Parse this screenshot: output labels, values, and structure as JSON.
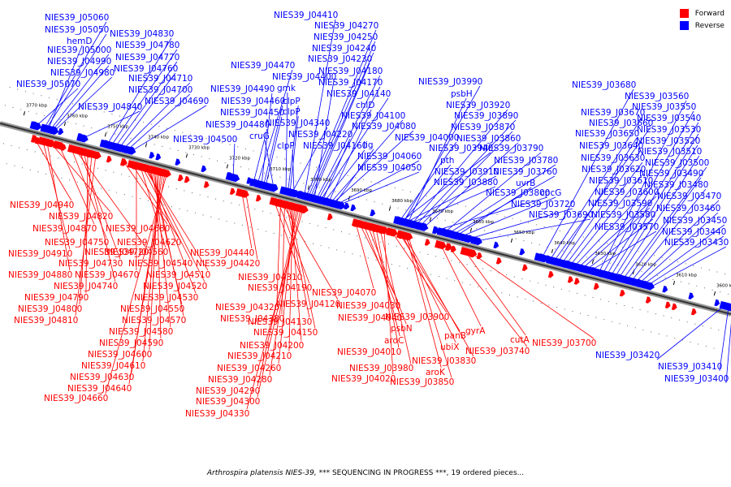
{
  "legend": {
    "forward": {
      "label": "Forward",
      "color": "#ff0000"
    },
    "reverse": {
      "label": "Reverse",
      "color": "#0000ff"
    }
  },
  "caption": {
    "organism": "Arthrospira platensis NIES-39,",
    "status": "*** SEQUENCING IN PROGRESS ***, 19 ordered pieces..."
  },
  "axis": {
    "kbp_labels": [
      {
        "kbp": 3770,
        "text": "3770 kbp"
      },
      {
        "kbp": 3760,
        "text": "3760 kbp"
      },
      {
        "kbp": 3750,
        "text": "3750 kbp"
      },
      {
        "kbp": 3740,
        "text": "3740 kbp"
      },
      {
        "kbp": 3730,
        "text": "3730 kbp"
      },
      {
        "kbp": 3720,
        "text": "3720 kbp"
      },
      {
        "kbp": 3710,
        "text": "3710 kbp"
      },
      {
        "kbp": 3700,
        "text": "3700 kbp"
      },
      {
        "kbp": 3690,
        "text": "3690 kbp"
      },
      {
        "kbp": 3680,
        "text": "3680 kbp"
      },
      {
        "kbp": 3670,
        "text": "3670 kbp"
      },
      {
        "kbp": 3660,
        "text": "3660 kbp"
      },
      {
        "kbp": 3650,
        "text": "3650 kbp"
      },
      {
        "kbp": 3640,
        "text": "3640 kbp"
      },
      {
        "kbp": 3630,
        "text": "3630 kbp"
      },
      {
        "kbp": 3620,
        "text": "3620 kbp"
      },
      {
        "kbp": 3610,
        "text": "3610 kbp"
      },
      {
        "kbp": 3600,
        "text": "3600 kbp"
      }
    ]
  },
  "reverse_genes": [
    {
      "kbp": 3764.5,
      "label": "NIES39_J05060"
    },
    {
      "kbp": 3764.0,
      "label": "NIES39_J05050"
    },
    {
      "kbp": 3763.5,
      "label": "hemD"
    },
    {
      "kbp": 3763.0,
      "label": "NIES39_J05000"
    },
    {
      "kbp": 3762.5,
      "label": "NIES39_J04990"
    },
    {
      "kbp": 3762.0,
      "label": "NIES39_J04980"
    },
    {
      "kbp": 3766.5,
      "label": "NIES39_J05070"
    },
    {
      "kbp": 3749.0,
      "label": "NIES39_J04830"
    },
    {
      "kbp": 3748.0,
      "label": "NIES39_J04780"
    },
    {
      "kbp": 3747.0,
      "label": "NIES39_J04770"
    },
    {
      "kbp": 3746.0,
      "label": "NIES39_J04760"
    },
    {
      "kbp": 3745.0,
      "label": "NIES39_J04710"
    },
    {
      "kbp": 3744.0,
      "label": "NIES39_J04700"
    },
    {
      "kbp": 3743.0,
      "label": "NIES39_J04690"
    },
    {
      "kbp": 3755.0,
      "label": "NIES39_J04840"
    },
    {
      "kbp": 3718.0,
      "label": "NIES39_J04500"
    },
    {
      "kbp": 3712.0,
      "label": "NIES39_J04470"
    },
    {
      "kbp": 3711.0,
      "label": "NIES39_J04490"
    },
    {
      "kbp": 3710.5,
      "label": "NIES39_J04460"
    },
    {
      "kbp": 3710.0,
      "label": "NIES39_J04450"
    },
    {
      "kbp": 3713.0,
      "label": "NIES39_J04480"
    },
    {
      "kbp": 3708.0,
      "label": "cruG"
    },
    {
      "kbp": 3705.0,
      "label": "gmk"
    },
    {
      "kbp": 3704.5,
      "label": "clpP"
    },
    {
      "kbp": 3704.0,
      "label": "clpP"
    },
    {
      "kbp": 3703.5,
      "label": "NIES39_J04340"
    },
    {
      "kbp": 3703.0,
      "label": "clpP"
    },
    {
      "kbp": 3700.5,
      "label": "NIES39_J04410"
    },
    {
      "kbp": 3700.0,
      "label": "NIES39_J04270"
    },
    {
      "kbp": 3699.5,
      "label": "NIES39_J04250"
    },
    {
      "kbp": 3699.0,
      "label": "NIES39_J04240"
    },
    {
      "kbp": 3698.5,
      "label": "NIES39_J04230"
    },
    {
      "kbp": 3698.0,
      "label": "NIES39_J04400"
    },
    {
      "kbp": 3697.5,
      "label": "NIES39_J04180"
    },
    {
      "kbp": 3697.0,
      "label": "NIES39_J04170"
    },
    {
      "kbp": 3696.5,
      "label": "NIES39_J04140"
    },
    {
      "kbp": 3696.0,
      "label": "NIES39_J04220"
    },
    {
      "kbp": 3695.5,
      "label": "NIES39_J04160"
    },
    {
      "kbp": 3694.5,
      "label": "chlD"
    },
    {
      "kbp": 3694.0,
      "label": "NIES39_J04100"
    },
    {
      "kbp": 3693.5,
      "label": "NIES39_J04080"
    },
    {
      "kbp": 3693.0,
      "label": "lig"
    },
    {
      "kbp": 3692.5,
      "label": "NIES39_J04060"
    },
    {
      "kbp": 3692.0,
      "label": "NIES39_J04050"
    },
    {
      "kbp": 3676.0,
      "label": "NIES39_J03990"
    },
    {
      "kbp": 3675.0,
      "label": "psbH"
    },
    {
      "kbp": 3674.0,
      "label": "NIES39_J03920"
    },
    {
      "kbp": 3673.0,
      "label": "NIES39_J03890"
    },
    {
      "kbp": 3672.0,
      "label": "NIES39_J03870"
    },
    {
      "kbp": 3671.0,
      "label": "NIES39_J03860"
    },
    {
      "kbp": 3677.0,
      "label": "NIES39_J04000"
    },
    {
      "kbp": 3676.5,
      "label": "NIES39_J03940"
    },
    {
      "kbp": 3676.2,
      "label": "pth"
    },
    {
      "kbp": 3675.5,
      "label": "NIES39_J03910"
    },
    {
      "kbp": 3674.5,
      "label": "NIES39_J03880"
    },
    {
      "kbp": 3666.0,
      "label": "NIES39_J03790"
    },
    {
      "kbp": 3665.0,
      "label": "NIES39_J03780"
    },
    {
      "kbp": 3664.0,
      "label": "NIES39_J03760"
    },
    {
      "kbp": 3663.0,
      "label": "uvrB"
    },
    {
      "kbp": 3662.0,
      "label": "cpcG"
    },
    {
      "kbp": 3668.0,
      "label": "NIES39_J03800"
    },
    {
      "kbp": 3660.0,
      "label": "NIES39_J03720"
    },
    {
      "kbp": 3658.0,
      "label": "NIES39_J03690"
    },
    {
      "kbp": 3642.0,
      "label": "NIES39_J03680"
    },
    {
      "kbp": 3640.0,
      "label": "NIES39_J03670"
    },
    {
      "kbp": 3639.0,
      "label": "NIES39_J03660"
    },
    {
      "kbp": 3638.0,
      "label": "NIES39_J03650"
    },
    {
      "kbp": 3637.0,
      "label": "NIES39_J03640"
    },
    {
      "kbp": 3636.0,
      "label": "NIES39_J03630"
    },
    {
      "kbp": 3635.0,
      "label": "NIES39_J03620"
    },
    {
      "kbp": 3634.0,
      "label": "NIES39_J03610"
    },
    {
      "kbp": 3633.0,
      "label": "NIES39_J03600"
    },
    {
      "kbp": 3632.0,
      "label": "NIES39_J03590"
    },
    {
      "kbp": 3631.0,
      "label": "NIES39_J03580"
    },
    {
      "kbp": 3630.0,
      "label": "NIES39_J03570"
    },
    {
      "kbp": 3628.0,
      "label": "NIES39_J03560"
    },
    {
      "kbp": 3627.0,
      "label": "NIES39_J03550"
    },
    {
      "kbp": 3626.0,
      "label": "NIES39_J03540"
    },
    {
      "kbp": 3625.0,
      "label": "NIES39_J03530"
    },
    {
      "kbp": 3624.0,
      "label": "NIES39_J03520"
    },
    {
      "kbp": 3623.0,
      "label": "NIES39_J03510"
    },
    {
      "kbp": 3622.0,
      "label": "NIES39_J03500"
    },
    {
      "kbp": 3621.0,
      "label": "NIES39_J03490"
    },
    {
      "kbp": 3620.0,
      "label": "NIES39_J03480"
    },
    {
      "kbp": 3619.0,
      "label": "NIES39_J03470"
    },
    {
      "kbp": 3618.0,
      "label": "NIES39_J03460"
    },
    {
      "kbp": 3617.0,
      "label": "NIES39_J03450"
    },
    {
      "kbp": 3616.0,
      "label": "NIES39_J03440"
    },
    {
      "kbp": 3615.0,
      "label": "NIES39_J03430"
    },
    {
      "kbp": 3597.0,
      "label": "NIES39_J03420"
    },
    {
      "kbp": 3596.0,
      "label": "NIES39_J03410"
    },
    {
      "kbp": 3595.0,
      "label": "NIES39_J03400"
    }
  ],
  "forward_genes": [
    {
      "kbp": 3766.0,
      "label": "NIES39_J04940"
    },
    {
      "kbp": 3762.0,
      "label": "NIES39_J04820"
    },
    {
      "kbp": 3760.0,
      "label": "NIES39_J04870"
    },
    {
      "kbp": 3757.0,
      "label": "NIES39_J04750"
    },
    {
      "kbp": 3764.0,
      "label": "NIES39_J04910"
    },
    {
      "kbp": 3756.0,
      "label": "NIES39_J04720"
    },
    {
      "kbp": 3755.0,
      "label": "NIES39_J04730"
    },
    {
      "kbp": 3763.0,
      "label": "NIES39_J04880"
    },
    {
      "kbp": 3754.0,
      "label": "NIES39_J04740"
    },
    {
      "kbp": 3753.0,
      "label": "NIES39_J04790"
    },
    {
      "kbp": 3752.0,
      "label": "NIES39_J04800"
    },
    {
      "kbp": 3751.0,
      "label": "NIES39_J04810"
    },
    {
      "kbp": 3744.0,
      "label": "NIES39_J04680"
    },
    {
      "kbp": 3742.0,
      "label": "NIES39_J04620"
    },
    {
      "kbp": 3740.0,
      "label": "NIES39_J04560"
    },
    {
      "kbp": 3739.5,
      "label": "NIES39_J04540"
    },
    {
      "kbp": 3741.0,
      "label": "NIES39_J04670"
    },
    {
      "kbp": 3739.0,
      "label": "NIES39_J04510"
    },
    {
      "kbp": 3738.5,
      "label": "NIES39_J04520"
    },
    {
      "kbp": 3738.0,
      "label": "NIES39_J04530"
    },
    {
      "kbp": 3737.5,
      "label": "NIES39_J04550"
    },
    {
      "kbp": 3737.0,
      "label": "NIES39_J04570"
    },
    {
      "kbp": 3736.5,
      "label": "NIES39_J04580"
    },
    {
      "kbp": 3736.0,
      "label": "NIES39_J04590"
    },
    {
      "kbp": 3735.5,
      "label": "NIES39_J04600"
    },
    {
      "kbp": 3735.0,
      "label": "NIES39_J04610"
    },
    {
      "kbp": 3734.5,
      "label": "NIES39_J04630"
    },
    {
      "kbp": 3734.0,
      "label": "NIES39_J04640"
    },
    {
      "kbp": 3733.5,
      "label": "NIES39_J04660"
    },
    {
      "kbp": 3715.0,
      "label": "NIES39_J04440"
    },
    {
      "kbp": 3714.0,
      "label": "NIES39_J04420"
    },
    {
      "kbp": 3707.0,
      "label": "NIES39_J04310"
    },
    {
      "kbp": 3706.0,
      "label": "NIES39_J04190"
    },
    {
      "kbp": 3705.5,
      "label": "NIES39_J04320"
    },
    {
      "kbp": 3705.0,
      "label": "NIES39_J04120"
    },
    {
      "kbp": 3704.5,
      "label": "NIES39_J04380"
    },
    {
      "kbp": 3704.0,
      "label": "NIES39_J04130"
    },
    {
      "kbp": 3703.5,
      "label": "NIES39_J04150"
    },
    {
      "kbp": 3703.0,
      "label": "NIES39_J04200"
    },
    {
      "kbp": 3702.5,
      "label": "NIES39_J04210"
    },
    {
      "kbp": 3702.0,
      "label": "NIES39_J04260"
    },
    {
      "kbp": 3701.5,
      "label": "NIES39_J04280"
    },
    {
      "kbp": 3701.0,
      "label": "NIES39_J04290"
    },
    {
      "kbp": 3700.5,
      "label": "NIES39_J04300"
    },
    {
      "kbp": 3700.0,
      "label": "NIES39_J04330"
    },
    {
      "kbp": 3687.0,
      "label": "NIES39_J04070"
    },
    {
      "kbp": 3686.0,
      "label": "NIES39_J04030"
    },
    {
      "kbp": 3685.0,
      "label": "NIES39_J04040"
    },
    {
      "kbp": 3684.0,
      "label": "psbN"
    },
    {
      "kbp": 3683.0,
      "label": "aroC"
    },
    {
      "kbp": 3682.0,
      "label": "NIES39_J04010"
    },
    {
      "kbp": 3681.0,
      "label": "NIES39_J03980"
    },
    {
      "kbp": 3680.0,
      "label": "NIES39_J04020"
    },
    {
      "kbp": 3678.0,
      "label": "NIES39_J03900"
    },
    {
      "kbp": 3676.0,
      "label": "panB"
    },
    {
      "kbp": 3675.5,
      "label": "ubiX"
    },
    {
      "kbp": 3675.0,
      "label": "NIES39_J03830"
    },
    {
      "kbp": 3674.5,
      "label": "aroK"
    },
    {
      "kbp": 3674.0,
      "label": "NIES39_J03850"
    },
    {
      "kbp": 3666.0,
      "label": "gyrA"
    },
    {
      "kbp": 3664.0,
      "label": "NIES39_J03740"
    },
    {
      "kbp": 3660.0,
      "label": "cutA"
    },
    {
      "kbp": 3658.5,
      "label": "NIES39_J03700"
    }
  ]
}
